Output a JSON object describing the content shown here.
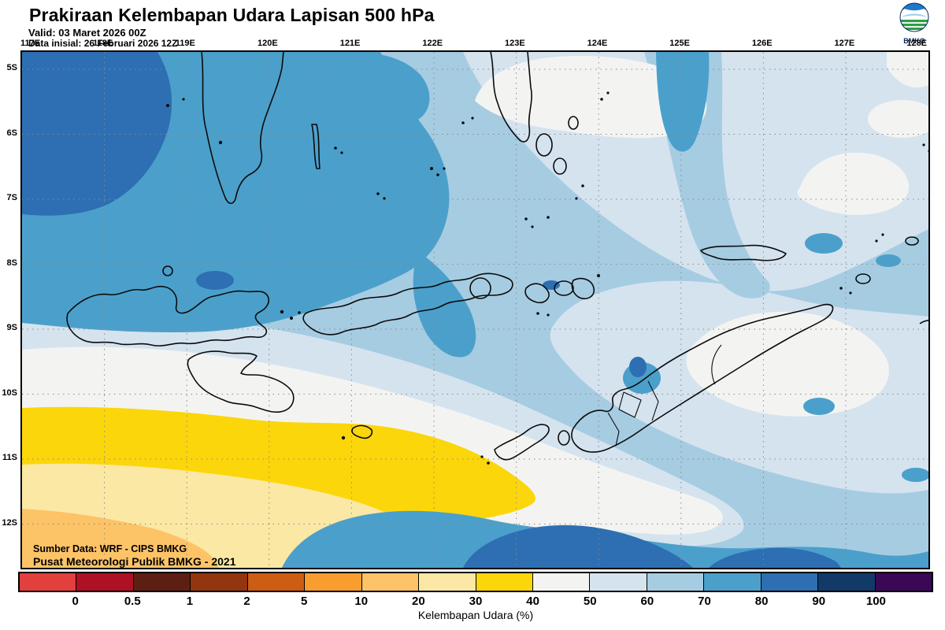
{
  "header": {
    "title": "Prakiraan Kelembapan Udara Lapisan 500 hPa",
    "valid": "Valid: 03 Maret 2026 00Z",
    "init": "Data inisial: 26 Februari 2026 12Z",
    "logo_text": "BMKG"
  },
  "map": {
    "lon_labels": [
      "117E",
      "118E",
      "119E",
      "120E",
      "121E",
      "122E",
      "123E",
      "124E",
      "125E",
      "126E",
      "127E",
      "128E"
    ],
    "lat_labels": [
      "5S",
      "6S",
      "7S",
      "8S",
      "9S",
      "10S",
      "11S",
      "12S"
    ],
    "source_line1": "Sumber Data: WRF - CIPS BMKG",
    "source_line2": "Pusat Meteorologi Publik BMKG - 2021"
  },
  "colorbar": {
    "caption": "Kelembapan Udara (%)",
    "tick_labels": [
      "0",
      "0.5",
      "1",
      "2",
      "5",
      "10",
      "20",
      "30",
      "40",
      "50",
      "60",
      "70",
      "80",
      "90",
      "100"
    ],
    "colors": [
      "#e2403d",
      "#ae1026",
      "#5d1f12",
      "#93350f",
      "#cd5d12",
      "#f99d2f",
      "#fdc367",
      "#fbe8a4",
      "#fbd60b",
      "#f3f4f2",
      "#d5e3ef",
      "#a6cce2",
      "#4ba0cb",
      "#2d6fb2",
      "#123a68",
      "#3b0857"
    ]
  },
  "logo_colors": {
    "sky_blue": "#1f78c8",
    "leaf_green": "#2e9e49",
    "cloud_white": "#ffffff"
  }
}
